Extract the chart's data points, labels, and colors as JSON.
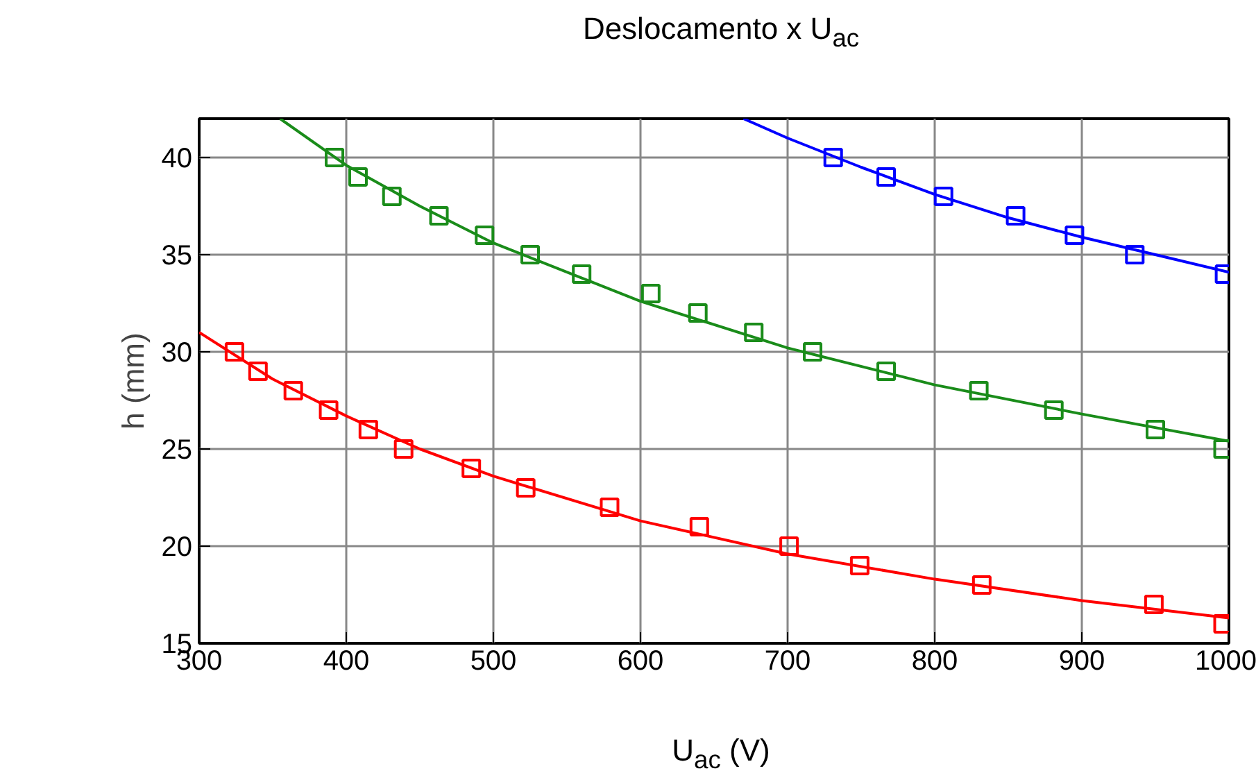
{
  "chart_data": {
    "type": "scatter",
    "title": "Deslocamento x U$_{ac}$",
    "xlabel": "U$_{ac}$ (V)",
    "ylabel": "h (mm)",
    "xlim": [
      300,
      1000
    ],
    "ylim": [
      15,
      42
    ],
    "xticks": [
      300,
      400,
      500,
      600,
      700,
      800,
      900,
      1000
    ],
    "yticks": [
      15,
      20,
      25,
      30,
      35,
      40
    ],
    "grid": true,
    "marker": "square",
    "series": [
      {
        "color": "#ff0000",
        "x": [
          324,
          340,
          364,
          388,
          415,
          439,
          485,
          522,
          579,
          640,
          701,
          749,
          832,
          949,
          996
        ],
        "values": [
          30,
          29,
          28,
          27,
          26,
          25,
          24,
          23,
          22,
          21,
          20,
          19,
          18,
          17,
          16
        ]
      },
      {
        "color": "#1a8c1a",
        "x": [
          392,
          408,
          431,
          463,
          494,
          525,
          560,
          607,
          639,
          677,
          717,
          767,
          830,
          881,
          950,
          996
        ],
        "values": [
          40,
          39,
          38,
          37,
          36,
          35,
          34,
          33,
          32,
          31,
          30,
          29,
          28,
          27,
          26,
          25
        ]
      },
      {
        "color": "#0000ff",
        "x": [
          731,
          767,
          806,
          855,
          895,
          936,
          997
        ],
        "values": [
          40,
          39,
          38,
          37,
          36,
          35,
          34
        ]
      },
      {
        "type": "line",
        "marker": "none",
        "color": "#ff0000",
        "x": [
          300,
          350,
          400,
          450,
          500,
          600,
          700,
          800,
          900,
          1000
        ],
        "values": [
          31,
          28.6,
          26.7,
          25.0,
          23.6,
          21.3,
          19.6,
          18.3,
          17.2,
          16.3
        ]
      },
      {
        "type": "line",
        "marker": "none",
        "color": "#1a8c1a",
        "x": [
          355,
          400,
          450,
          500,
          600,
          700,
          800,
          900,
          1000
        ],
        "values": [
          42,
          39.6,
          37.5,
          35.6,
          32.6,
          30.2,
          28.3,
          26.8,
          25.4
        ]
      },
      {
        "type": "line",
        "marker": "none",
        "color": "#0000ff",
        "x": [
          670,
          700,
          750,
          800,
          850,
          900,
          950,
          1000
        ],
        "values": [
          42,
          41,
          39.5,
          38.1,
          36.9,
          35.9,
          35.0,
          34.1
        ]
      }
    ]
  }
}
